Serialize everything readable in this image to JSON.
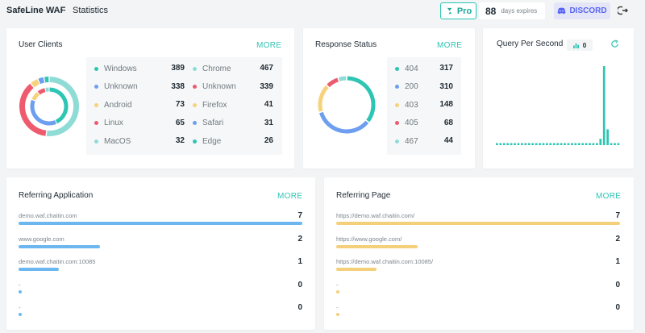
{
  "header": {
    "brand": "SafeLine WAF",
    "breadcrumb_separator": "›",
    "page": "Statistics",
    "pro_label": "Pro",
    "days_count": "88",
    "days_label": "days expires",
    "discord_label": "DISCORD"
  },
  "colors": {
    "teal": "#2ec5b4",
    "blue": "#6d9ef0",
    "yellow": "#f6d27a",
    "red": "#ee5b6e",
    "lightteal": "#8fdcd7",
    "bar_blue": "#6db7f0",
    "bar_yellow": "#f4d07a"
  },
  "user_clients": {
    "title": "User Clients",
    "more": "MORE",
    "left": [
      {
        "name": "Windows",
        "value": "389",
        "color": "#2ec5b4"
      },
      {
        "name": "Unknown",
        "value": "338",
        "color": "#6d9ef0"
      },
      {
        "name": "Android",
        "value": "73",
        "color": "#f6d27a"
      },
      {
        "name": "Linux",
        "value": "65",
        "color": "#ee5b6e"
      },
      {
        "name": "MacOS",
        "value": "32",
        "color": "#8fdcd7"
      }
    ],
    "right": [
      {
        "name": "Chrome",
        "value": "467",
        "color": "#8fdcd7"
      },
      {
        "name": "Unknown",
        "value": "339",
        "color": "#ee5b6e"
      },
      {
        "name": "Firefox",
        "value": "41",
        "color": "#f6d27a"
      },
      {
        "name": "Safari",
        "value": "31",
        "color": "#6d9ef0"
      },
      {
        "name": "Edge",
        "value": "26",
        "color": "#2ec5b4"
      }
    ]
  },
  "response_status": {
    "title": "Response Status",
    "more": "MORE",
    "items": [
      {
        "name": "404",
        "value": "317",
        "color": "#2ec5b4"
      },
      {
        "name": "200",
        "value": "310",
        "color": "#6d9ef0"
      },
      {
        "name": "403",
        "value": "148",
        "color": "#f6d27a"
      },
      {
        "name": "405",
        "value": "68",
        "color": "#ee5b6e"
      },
      {
        "name": "467",
        "value": "44",
        "color": "#8fdcd7"
      }
    ]
  },
  "qps": {
    "title": "Query Per Second",
    "current": "0",
    "values": [
      0,
      0,
      0,
      0,
      0,
      0,
      0,
      0,
      0,
      0,
      0,
      0,
      0,
      0,
      0,
      0,
      0,
      0,
      0,
      0,
      0,
      0,
      0,
      0,
      0,
      0,
      0,
      0,
      2,
      8,
      100,
      20,
      0,
      0,
      0
    ]
  },
  "referring_application": {
    "title": "Referring Application",
    "more": "MORE",
    "items": [
      {
        "label": "demo.waf.chaitin.com",
        "count": "7",
        "value": 7
      },
      {
        "label": "www.google.com",
        "count": "2",
        "value": 2
      },
      {
        "label": "demo.waf.chaitin.com:10085",
        "count": "1",
        "value": 1
      },
      {
        "label": "-",
        "count": "0",
        "value": 0
      },
      {
        "label": "-",
        "count": "0",
        "value": 0
      }
    ]
  },
  "referring_page": {
    "title": "Referring Page",
    "more": "MORE",
    "items": [
      {
        "label": "https://demo.waf.chaitin.com/",
        "count": "7",
        "value": 7
      },
      {
        "label": "https://www.google.com/",
        "count": "2",
        "value": 2
      },
      {
        "label": "https://demo.waf.chaitin.com:10085/",
        "count": "1",
        "value": 1
      },
      {
        "label": "-",
        "count": "0",
        "value": 0
      },
      {
        "label": "-",
        "count": "0",
        "value": 0
      }
    ]
  }
}
